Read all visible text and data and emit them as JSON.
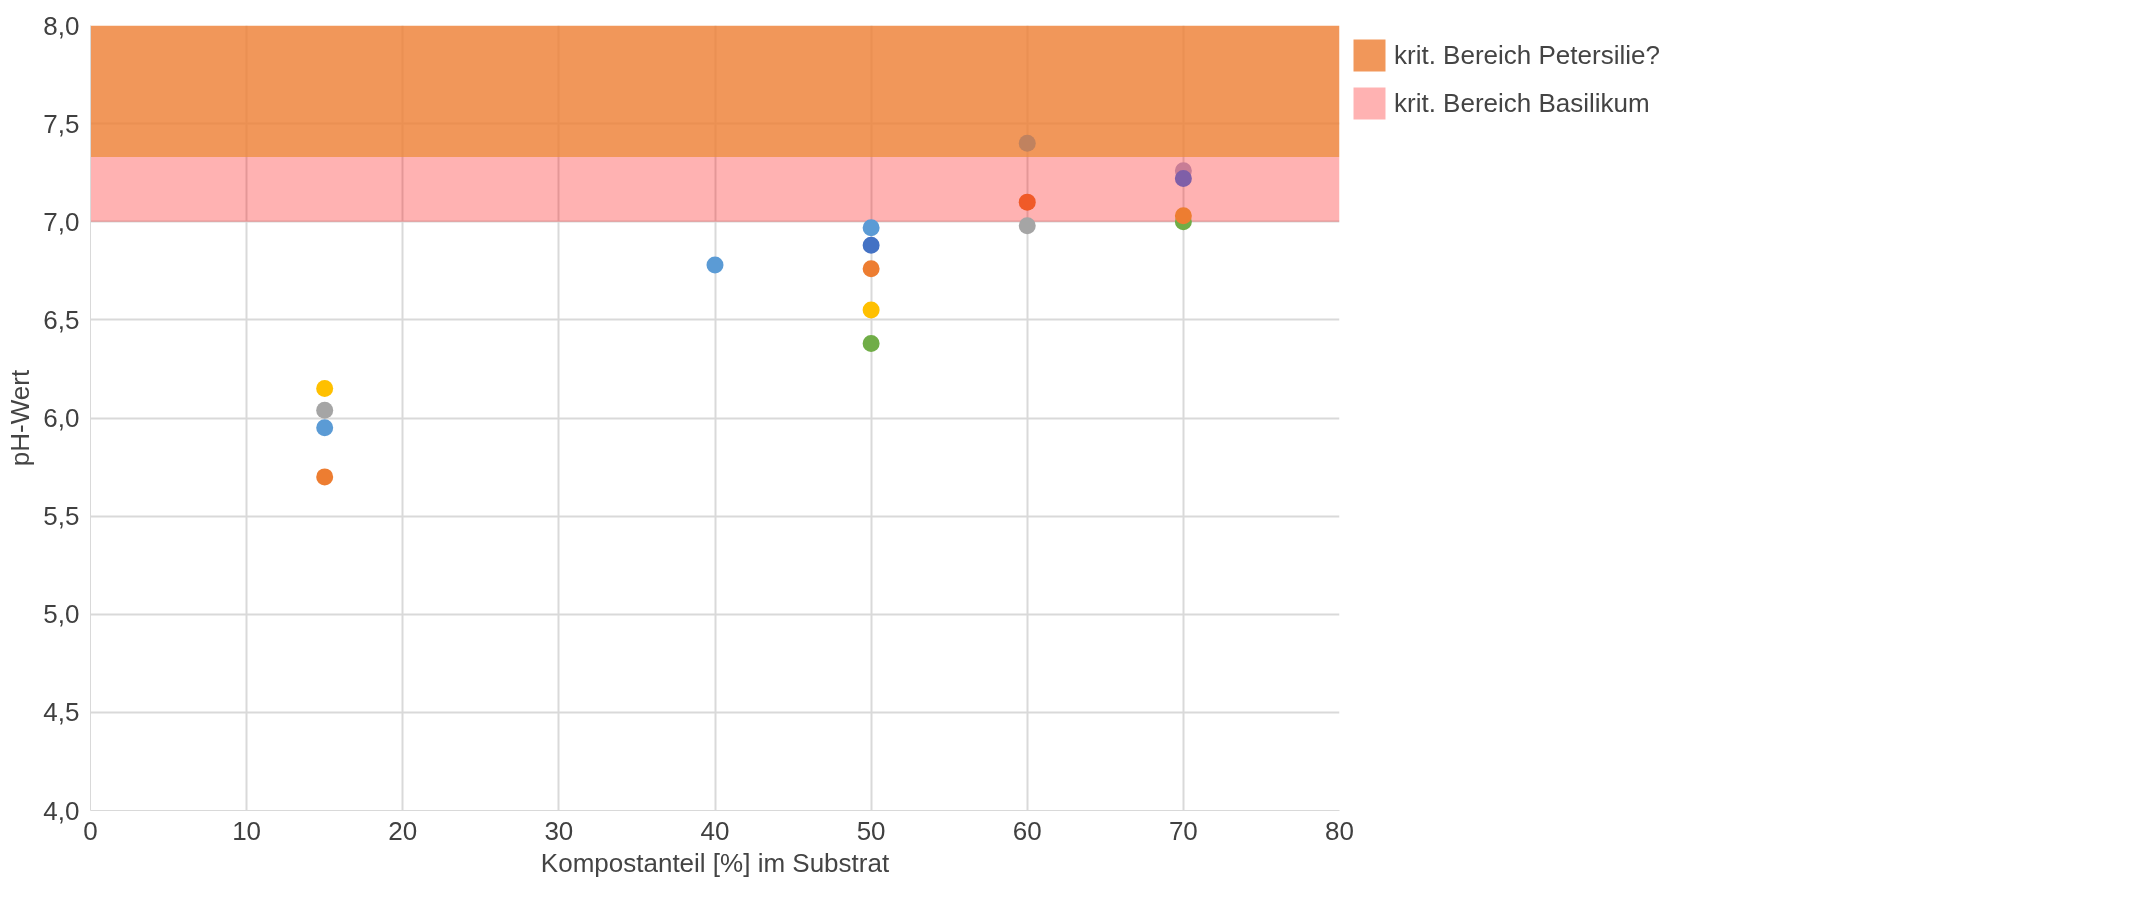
{
  "chart_data": {
    "type": "scatter",
    "xlabel": "Kompostanteil [%] im Substrat",
    "ylabel": "pH-Wert",
    "x": [
      15,
      15,
      15,
      15,
      40,
      50,
      50,
      50,
      50,
      50,
      60,
      60,
      60,
      70,
      70,
      70,
      70
    ],
    "values": [
      6.15,
      6.04,
      5.95,
      5.7,
      6.78,
      6.97,
      6.88,
      6.76,
      6.55,
      6.38,
      7.4,
      7.1,
      6.98,
      7.26,
      7.22,
      7.0,
      7.03
    ],
    "colors": [
      "#ffc000",
      "#a5a5a5",
      "#5b9bd5",
      "#ed7d31",
      "#5b9bd5",
      "#5b9bd5",
      "#4472c4",
      "#ed7d31",
      "#ffc000",
      "#70ad47",
      "#c0825f",
      "#f05a28",
      "#a5a5a5",
      "#c87d96",
      "#7f5fa8",
      "#70ad47",
      "#ed7d31"
    ],
    "marker": "circle",
    "xlim": [
      0,
      80
    ],
    "xticks": [
      0,
      10,
      20,
      30,
      40,
      50,
      60,
      70,
      80
    ],
    "ylim": [
      4,
      8
    ],
    "yticks": [
      {
        "value": 4,
        "label": "4,0"
      },
      {
        "value": 4.5,
        "label": "4,5"
      },
      {
        "value": 5,
        "label": "5,0"
      },
      {
        "value": 5.5,
        "label": "5,5"
      },
      {
        "value": 6,
        "label": "6,0"
      },
      {
        "value": 6.5,
        "label": "6,5"
      },
      {
        "value": 7,
        "label": "7,0"
      },
      {
        "value": 7.5,
        "label": "7,5"
      },
      {
        "value": 8,
        "label": "8,0"
      }
    ],
    "bands": [
      {
        "axis": "y",
        "from": 7.33,
        "to": 8.0,
        "label": "krit. Bereich Petersilie?",
        "color": "#ed7d31"
      },
      {
        "axis": "y",
        "from": 7.0,
        "to": 7.33,
        "label": "krit. Bereich Basilikum",
        "color": "#ff0000"
      }
    ],
    "grid": true,
    "legend": "right"
  }
}
